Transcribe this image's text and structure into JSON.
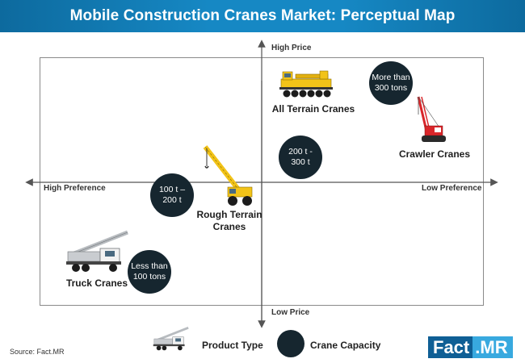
{
  "header": {
    "title": "Mobile Construction Cranes Market: Perceptual Map",
    "bg_color": "#1688c4"
  },
  "axes": {
    "top_label": "High Price",
    "bottom_label": "Low Price",
    "left_label": "High Preference",
    "right_label": "Low Preference"
  },
  "products": [
    {
      "name": "All Terrain Cranes",
      "icon": "all-terrain-crane-icon"
    },
    {
      "name": "Crawler Cranes",
      "icon": "crawler-crane-icon"
    },
    {
      "name": "Rough Terrain Cranes",
      "line1": "Rough Terrain",
      "line2": "Cranes",
      "icon": "rough-terrain-crane-icon"
    },
    {
      "name": "Truck Cranes",
      "icon": "truck-crane-icon"
    }
  ],
  "capacities": [
    {
      "label": "More than\n300 tons"
    },
    {
      "label": "200 t -\n300 t"
    },
    {
      "label": "100 t –\n200 t"
    },
    {
      "label": "Less than\n100 tons"
    }
  ],
  "legend": {
    "product_type": "Product Type",
    "crane_capacity": "Crane Capacity"
  },
  "source": "Source: Fact.MR",
  "logo": {
    "part1": "Fact",
    "part2": ".MR"
  },
  "colors": {
    "bubble": "#16262f",
    "crane_yellow": "#f2c318",
    "crawler_red": "#d9262a",
    "logo_dark": "#0f5f95",
    "logo_light": "#38a9df"
  }
}
